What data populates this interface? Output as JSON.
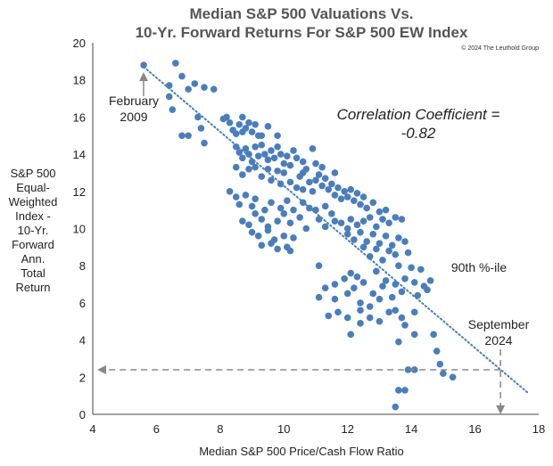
{
  "chart_data": {
    "type": "scatter",
    "title": [
      "Median S&P 500 Valuations Vs.",
      "10-Yr. Forward Returns For S&P 500 EW Index"
    ],
    "copyright": "© 2024 The Leuthold Group",
    "xlabel": "Median S&P 500 Price/Cash Flow Ratio",
    "ylabel": [
      "S&P 500",
      "Equal-",
      "Weighted",
      "Index -",
      "10-Yr.",
      "Forward",
      "Ann.",
      "Total",
      "Return"
    ],
    "xlim": [
      4,
      18
    ],
    "ylim": [
      0,
      20
    ],
    "xticks": [
      4,
      6,
      8,
      10,
      12,
      14,
      16,
      18
    ],
    "yticks": [
      0,
      2,
      4,
      6,
      8,
      10,
      12,
      14,
      16,
      18,
      20
    ],
    "grid": false,
    "marker_color": "#4a7ebb",
    "trendline": {
      "style": "dotted",
      "color": "#4a7ebb",
      "start": [
        5.6,
        18.7
      ],
      "end": [
        17.7,
        1.1
      ]
    },
    "annotations": {
      "february": [
        "February",
        "2009"
      ],
      "correlation": [
        "Correlation Coefficient =",
        "-0.82"
      ],
      "percentile": "90th %-ile",
      "september": [
        "September",
        "2024"
      ]
    },
    "reference_arrows": {
      "color": "#888888",
      "current_x": 16.8,
      "current_y": 2.4
    },
    "points": [
      [
        5.6,
        18.8
      ],
      [
        6.6,
        18.9
      ],
      [
        6.4,
        17.7
      ],
      [
        6.8,
        18.2
      ],
      [
        7.0,
        17.5
      ],
      [
        7.2,
        17.8
      ],
      [
        7.5,
        17.6
      ],
      [
        7.8,
        17.5
      ],
      [
        6.4,
        17.1
      ],
      [
        6.5,
        16.4
      ],
      [
        6.8,
        15.0
      ],
      [
        7.0,
        15.0
      ],
      [
        7.3,
        16.0
      ],
      [
        7.4,
        15.4
      ],
      [
        7.5,
        14.6
      ],
      [
        8.1,
        15.9
      ],
      [
        8.2,
        16.0
      ],
      [
        8.3,
        15.7
      ],
      [
        8.4,
        15.3
      ],
      [
        8.5,
        15.1
      ],
      [
        8.6,
        15.6
      ],
      [
        8.7,
        16.0
      ],
      [
        8.8,
        15.4
      ],
      [
        8.9,
        15.7
      ],
      [
        9.0,
        15.2
      ],
      [
        9.1,
        15.6
      ],
      [
        9.3,
        15.0
      ],
      [
        9.5,
        15.5
      ],
      [
        9.8,
        15.0
      ],
      [
        8.7,
        15.2
      ],
      [
        9.2,
        15.0
      ],
      [
        8.5,
        14.4
      ],
      [
        8.6,
        14.1
      ],
      [
        8.7,
        13.8
      ],
      [
        8.8,
        14.3
      ],
      [
        8.9,
        14.0
      ],
      [
        9.0,
        13.6
      ],
      [
        9.1,
        14.4
      ],
      [
        9.2,
        13.9
      ],
      [
        9.3,
        14.5
      ],
      [
        9.4,
        14.0
      ],
      [
        9.5,
        13.7
      ],
      [
        9.6,
        14.2
      ],
      [
        9.7,
        13.8
      ],
      [
        9.8,
        14.4
      ],
      [
        9.9,
        14.0
      ],
      [
        10.0,
        13.5
      ],
      [
        10.1,
        13.9
      ],
      [
        10.2,
        13.4
      ],
      [
        10.3,
        14.2
      ],
      [
        8.5,
        13.3
      ],
      [
        8.7,
        12.9
      ],
      [
        8.9,
        13.2
      ],
      [
        9.1,
        13.3
      ],
      [
        9.3,
        12.8
      ],
      [
        9.5,
        13.2
      ],
      [
        9.6,
        12.6
      ],
      [
        9.8,
        13.1
      ],
      [
        9.9,
        12.4
      ],
      [
        10.0,
        13.0
      ],
      [
        10.2,
        12.5
      ],
      [
        10.4,
        12.2
      ],
      [
        10.5,
        12.8
      ],
      [
        10.6,
        12.1
      ],
      [
        10.7,
        13.2
      ],
      [
        10.8,
        12.5
      ],
      [
        10.9,
        12.0
      ],
      [
        11.0,
        12.6
      ],
      [
        11.1,
        12.9
      ],
      [
        11.2,
        12.3
      ],
      [
        11.3,
        12.7
      ],
      [
        11.4,
        12.1
      ],
      [
        11.5,
        12.4
      ],
      [
        11.6,
        11.8
      ],
      [
        11.7,
        12.2
      ],
      [
        11.8,
        11.6
      ],
      [
        11.9,
        12.0
      ],
      [
        12.0,
        11.7
      ],
      [
        12.1,
        12.1
      ],
      [
        12.2,
        11.5
      ],
      [
        12.3,
        11.9
      ],
      [
        12.4,
        11.3
      ],
      [
        12.5,
        11.7
      ],
      [
        12.6,
        11.1
      ],
      [
        12.8,
        11.4
      ],
      [
        13.0,
        10.9
      ],
      [
        13.2,
        11.0
      ],
      [
        10.4,
        13.8
      ],
      [
        10.6,
        13.6
      ],
      [
        10.9,
        14.3
      ],
      [
        11.2,
        13.3
      ],
      [
        11.6,
        13.0
      ],
      [
        10.6,
        13.0
      ],
      [
        11.0,
        13.5
      ],
      [
        8.3,
        12.0
      ],
      [
        8.5,
        11.7
      ],
      [
        8.6,
        11.3
      ],
      [
        8.8,
        11.8
      ],
      [
        9.0,
        11.2
      ],
      [
        9.1,
        11.6
      ],
      [
        9.4,
        11.0
      ],
      [
        9.6,
        11.4
      ],
      [
        9.9,
        11.1
      ],
      [
        10.1,
        11.5
      ],
      [
        10.3,
        11.0
      ],
      [
        10.6,
        11.4
      ],
      [
        10.8,
        11.1
      ],
      [
        11.0,
        11.0
      ],
      [
        11.3,
        11.2
      ],
      [
        11.5,
        10.8
      ],
      [
        8.7,
        10.4
      ],
      [
        8.9,
        10.2
      ],
      [
        9.1,
        10.8
      ],
      [
        9.3,
        10.5
      ],
      [
        9.5,
        10.1
      ],
      [
        9.8,
        10.4
      ],
      [
        10.0,
        10.8
      ],
      [
        10.2,
        10.3
      ],
      [
        10.5,
        10.6
      ],
      [
        10.7,
        10.0
      ],
      [
        11.1,
        10.5
      ],
      [
        11.3,
        10.1
      ],
      [
        11.6,
        10.4
      ],
      [
        11.8,
        10.3
      ],
      [
        12.0,
        10.0
      ],
      [
        12.1,
        10.5
      ],
      [
        12.3,
        10.2
      ],
      [
        12.5,
        10.4
      ],
      [
        12.7,
        10.6
      ],
      [
        12.9,
        10.1
      ],
      [
        13.1,
        10.5
      ],
      [
        13.3,
        10.3
      ],
      [
        13.5,
        10.6
      ],
      [
        13.7,
        10.5
      ],
      [
        9.0,
        9.8
      ],
      [
        9.2,
        9.6
      ],
      [
        9.5,
        9.9
      ],
      [
        9.7,
        9.4
      ],
      [
        10.0,
        9.6
      ],
      [
        10.1,
        9.0
      ],
      [
        10.3,
        9.5
      ],
      [
        12.0,
        9.7
      ],
      [
        12.2,
        9.4
      ],
      [
        12.4,
        9.8
      ],
      [
        12.6,
        9.3
      ],
      [
        12.8,
        9.7
      ],
      [
        13.0,
        9.2
      ],
      [
        13.2,
        9.6
      ],
      [
        13.4,
        9.1
      ],
      [
        13.6,
        9.5
      ],
      [
        13.8,
        9.3
      ],
      [
        9.3,
        9.1
      ],
      [
        9.6,
        9.2
      ],
      [
        12.5,
        9.0
      ],
      [
        12.9,
        8.9
      ],
      [
        13.3,
        8.8
      ],
      [
        13.5,
        8.6
      ],
      [
        13.9,
        8.7
      ],
      [
        9.8,
        8.9
      ],
      [
        10.2,
        8.8
      ],
      [
        12.7,
        8.5
      ],
      [
        13.1,
        8.3
      ],
      [
        13.6,
        8.0
      ],
      [
        14.0,
        7.9
      ],
      [
        14.3,
        7.8
      ],
      [
        11.1,
        8.0
      ],
      [
        12.1,
        7.6
      ],
      [
        12.3,
        7.4
      ],
      [
        12.9,
        7.7
      ],
      [
        13.2,
        7.2
      ],
      [
        13.5,
        7.0
      ],
      [
        13.8,
        7.3
      ],
      [
        14.1,
        7.1
      ],
      [
        14.4,
        6.9
      ],
      [
        14.6,
        7.2
      ],
      [
        11.6,
        7.0
      ],
      [
        11.9,
        7.3
      ],
      [
        12.2,
        6.8
      ],
      [
        12.5,
        7.1
      ],
      [
        12.8,
        6.5
      ],
      [
        13.1,
        6.9
      ],
      [
        13.4,
        6.3
      ],
      [
        13.7,
        6.6
      ],
      [
        14.2,
        6.4
      ],
      [
        14.5,
        6.7
      ],
      [
        11.1,
        6.3
      ],
      [
        11.3,
        6.8
      ],
      [
        11.6,
        6.2
      ],
      [
        12.0,
        6.5
      ],
      [
        12.4,
        6.0
      ],
      [
        12.7,
        5.8
      ],
      [
        13.0,
        6.2
      ],
      [
        13.3,
        5.5
      ],
      [
        13.7,
        5.2
      ],
      [
        14.1,
        5.5
      ],
      [
        11.7,
        5.5
      ],
      [
        12.0,
        5.2
      ],
      [
        12.4,
        5.6
      ],
      [
        12.7,
        5.2
      ],
      [
        11.4,
        5.3
      ],
      [
        12.1,
        4.3
      ],
      [
        12.4,
        4.9
      ],
      [
        13.0,
        5.0
      ],
      [
        13.8,
        4.8
      ],
      [
        13.5,
        5.6
      ],
      [
        14.1,
        4.3
      ],
      [
        13.6,
        3.9
      ],
      [
        14.7,
        4.3
      ],
      [
        14.8,
        3.4
      ],
      [
        14.9,
        2.7
      ],
      [
        15.0,
        2.2
      ],
      [
        15.3,
        2.0
      ],
      [
        14.1,
        2.4
      ],
      [
        13.9,
        2.4
      ],
      [
        13.8,
        1.3
      ],
      [
        13.6,
        1.3
      ],
      [
        13.5,
        0.4
      ]
    ]
  }
}
